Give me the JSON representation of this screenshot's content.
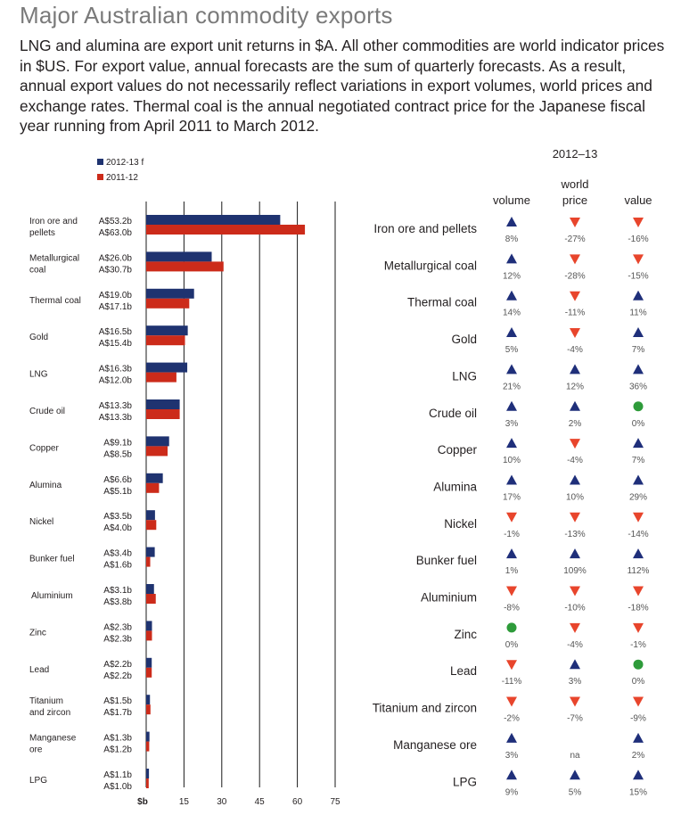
{
  "title": "Major Australian commodity exports",
  "note": "LNG and alumina are export unit returns in $A. All other commodities are world indicator prices in $US. For export value, annual forecasts are the sum of quarterly forecasts. As a result, annual export values do not necessarily reflect variations in export volumes, world prices and exchange rates. Thermal coal is the annual negotiated contract price for the Japanese fiscal year running from April 2011 to March 2012.",
  "colors": {
    "series_2012_13": "#1f3370",
    "series_2011_12": "#cc2b1a",
    "up": "#1f2f7a",
    "down": "#e8452c",
    "flat": "#2e9b3a"
  },
  "chart_data": [
    {
      "type": "bar",
      "orientation": "horizontal",
      "categories": [
        "Iron ore and pellets",
        "Metallurgical coal",
        "Thermal coal",
        "Gold",
        "LNG",
        "Crude oil",
        "Copper",
        "Alumina",
        "Nickel",
        "Bunker fuel",
        "Aluminium",
        "Zinc",
        "Lead",
        "Titanium and zircon",
        "Manganese ore",
        "LPG"
      ],
      "category_labels": [
        [
          "Iron ore and",
          "pellets"
        ],
        [
          "Metallurgical",
          "coal"
        ],
        [
          "Thermal coal"
        ],
        [
          "Gold"
        ],
        [
          "LNG"
        ],
        [
          "Crude oil"
        ],
        [
          "Copper"
        ],
        [
          "Alumina"
        ],
        [
          "Nickel"
        ],
        [
          "Bunker fuel"
        ],
        [
          "Aluminium"
        ],
        [
          "Zinc"
        ],
        [
          "Lead"
        ],
        [
          "Titanium",
          "and zircon"
        ],
        [
          "Manganese",
          "ore"
        ],
        [
          "LPG"
        ]
      ],
      "series": [
        {
          "name": "2012-13  f",
          "color": "#1f3370",
          "values": [
            53.2,
            26.0,
            19.0,
            16.5,
            16.3,
            13.3,
            9.1,
            6.6,
            3.5,
            3.4,
            3.1,
            2.3,
            2.2,
            1.5,
            1.3,
            1.1
          ],
          "labels": [
            "A$53.2b",
            "A$26.0b",
            "A$19.0b",
            "A$16.5b",
            "A$16.3b",
            "A$13.3b",
            "A$9.1b",
            "A$6.6b",
            "A$3.5b",
            "A$3.4b",
            "A$3.1b",
            "A$2.3b",
            "A$2.2b",
            "A$1.5b",
            "A$1.3b",
            "A$1.1b"
          ]
        },
        {
          "name": "2011-12",
          "color": "#cc2b1a",
          "values": [
            63.0,
            30.7,
            17.1,
            15.4,
            12.0,
            13.3,
            8.5,
            5.1,
            4.0,
            1.6,
            3.8,
            2.3,
            2.2,
            1.7,
            1.2,
            1.0
          ],
          "labels": [
            "A$63.0b",
            "A$30.7b",
            "A$17.1b",
            "A$15.4b",
            "A$12.0b",
            "A$13.3b",
            "A$8.5b",
            "A$5.1b",
            "A$4.0b",
            "A$1.6b",
            "A$3.8b",
            "A$2.3b",
            "A$2.2b",
            "A$1.7b",
            "A$1.2b",
            "A$1.0b"
          ]
        }
      ],
      "xlabel": "$b",
      "xlim": [
        0,
        75
      ],
      "xticks": [
        "15",
        "30",
        "45",
        "60",
        "75"
      ],
      "xtick_values": [
        15,
        30,
        45,
        60,
        75
      ],
      "grid": true,
      "legend": "top-left"
    },
    {
      "type": "table",
      "title": "2012–13",
      "columns": [
        "volume",
        "world price",
        "value"
      ],
      "column_labels": [
        [
          "volume"
        ],
        [
          "world",
          "price"
        ],
        [
          "value"
        ]
      ],
      "rows": [
        {
          "name": "Iron ore and pellets",
          "cells": [
            [
              "up",
              "8%"
            ],
            [
              "down",
              "-27%"
            ],
            [
              "down",
              "-16%"
            ]
          ]
        },
        {
          "name": "Metallurgical coal",
          "cells": [
            [
              "up",
              "12%"
            ],
            [
              "down",
              "-28%"
            ],
            [
              "down",
              "-15%"
            ]
          ]
        },
        {
          "name": "Thermal coal",
          "cells": [
            [
              "up",
              "14%"
            ],
            [
              "down",
              "-11%"
            ],
            [
              "up",
              "11%"
            ]
          ]
        },
        {
          "name": "Gold",
          "cells": [
            [
              "up",
              "5%"
            ],
            [
              "down",
              "-4%"
            ],
            [
              "up",
              "7%"
            ]
          ]
        },
        {
          "name": "LNG",
          "cells": [
            [
              "up",
              "21%"
            ],
            [
              "up",
              "12%"
            ],
            [
              "up",
              "36%"
            ]
          ]
        },
        {
          "name": "Crude oil",
          "cells": [
            [
              "up",
              "3%"
            ],
            [
              "up",
              "2%"
            ],
            [
              "flat",
              "0%"
            ]
          ]
        },
        {
          "name": "Copper",
          "cells": [
            [
              "up",
              "10%"
            ],
            [
              "down",
              "-4%"
            ],
            [
              "up",
              "7%"
            ]
          ]
        },
        {
          "name": "Alumina",
          "cells": [
            [
              "up",
              "17%"
            ],
            [
              "up",
              "10%"
            ],
            [
              "up",
              "29%"
            ]
          ]
        },
        {
          "name": "Nickel",
          "cells": [
            [
              "down",
              "-1%"
            ],
            [
              "down",
              "-13%"
            ],
            [
              "down",
              "-14%"
            ]
          ]
        },
        {
          "name": "Bunker fuel",
          "cells": [
            [
              "up",
              "1%"
            ],
            [
              "up",
              "109%"
            ],
            [
              "up",
              "112%"
            ]
          ]
        },
        {
          "name": "Aluminium",
          "cells": [
            [
              "down",
              "-8%"
            ],
            [
              "down",
              "-10%"
            ],
            [
              "down",
              "-18%"
            ]
          ]
        },
        {
          "name": "Zinc",
          "cells": [
            [
              "flat",
              "0%"
            ],
            [
              "down",
              "-4%"
            ],
            [
              "down",
              "-1%"
            ]
          ]
        },
        {
          "name": "Lead",
          "cells": [
            [
              "down",
              "-11%"
            ],
            [
              "up",
              "3%"
            ],
            [
              "flat",
              "0%"
            ]
          ]
        },
        {
          "name": "Titanium and zircon",
          "cells": [
            [
              "down",
              "-2%"
            ],
            [
              "down",
              "-7%"
            ],
            [
              "down",
              "-9%"
            ]
          ]
        },
        {
          "name": "Manganese ore",
          "cells": [
            [
              "up",
              "3%"
            ],
            [
              "none",
              "na"
            ],
            [
              "up",
              "2%"
            ]
          ]
        },
        {
          "name": "LPG",
          "cells": [
            [
              "up",
              "9%"
            ],
            [
              "up",
              "5%"
            ],
            [
              "up",
              "15%"
            ]
          ]
        }
      ]
    }
  ]
}
